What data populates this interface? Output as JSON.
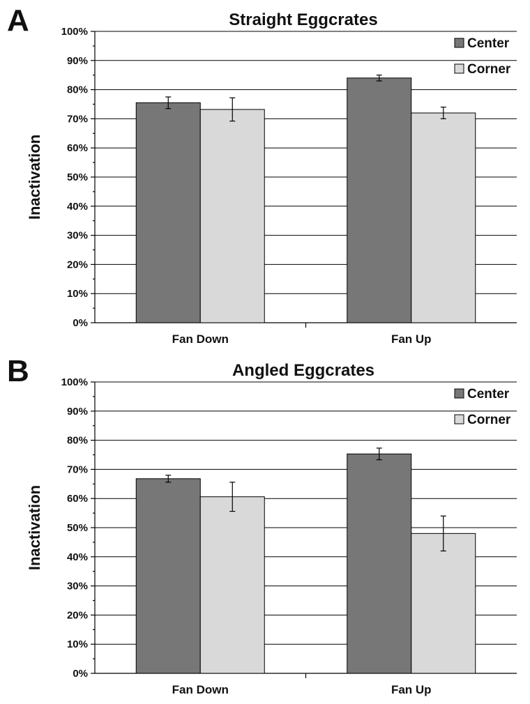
{
  "chart_data": [
    {
      "type": "bar",
      "panel_label": "A",
      "title": "Straight Eggcrates",
      "ylabel": "Inactivation",
      "xlabel": "",
      "ylim": [
        0,
        100
      ],
      "y_ticks": [
        "0%",
        "10%",
        "20%",
        "30%",
        "40%",
        "50%",
        "60%",
        "70%",
        "80%",
        "90%",
        "100%"
      ],
      "categories": [
        "Fan  Down",
        "Fan Up"
      ],
      "series": [
        {
          "name": "Center",
          "values": [
            75.5,
            84
          ],
          "errors": [
            2,
            1
          ],
          "color": "#777777"
        },
        {
          "name": "Corner",
          "values": [
            73.2,
            72
          ],
          "errors": [
            4,
            2
          ],
          "color": "#d9d9d9"
        }
      ],
      "grid": true,
      "legend": "top-right"
    },
    {
      "type": "bar",
      "panel_label": "B",
      "title": "Angled Eggcrates",
      "ylabel": "Inactivation",
      "xlabel": "",
      "ylim": [
        0,
        100
      ],
      "y_ticks": [
        "0%",
        "10%",
        "20%",
        "30%",
        "40%",
        "50%",
        "60%",
        "70%",
        "80%",
        "90%",
        "100%"
      ],
      "categories": [
        "Fan  Down",
        "Fan Up"
      ],
      "series": [
        {
          "name": "Center",
          "values": [
            66.8,
            75.3
          ],
          "errors": [
            1.2,
            2
          ],
          "color": "#777777"
        },
        {
          "name": "Corner",
          "values": [
            60.6,
            48
          ],
          "errors": [
            5,
            6
          ],
          "color": "#d9d9d9"
        }
      ],
      "grid": true,
      "legend": "top-right"
    }
  ]
}
